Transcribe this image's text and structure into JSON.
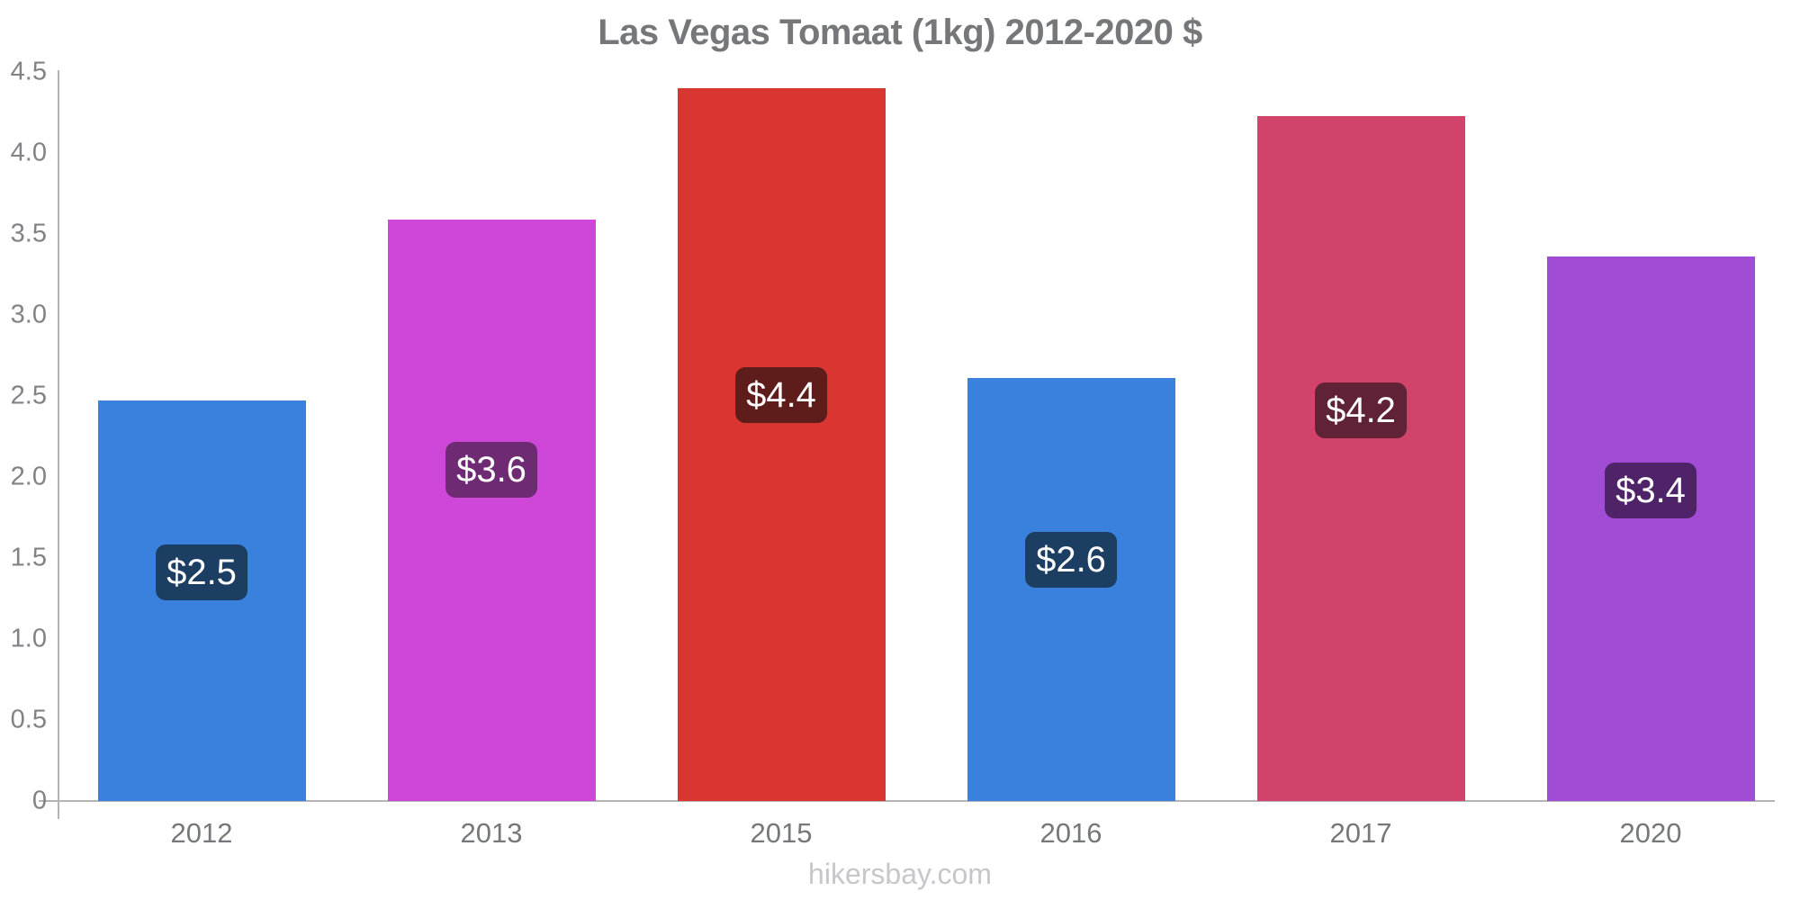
{
  "title": "Las Vegas Tomaat (1kg) 2012-2020 $",
  "footer": "hikersbay.com",
  "colors": {
    "axis_line": "#b3b4b6",
    "title_text": "#76777a",
    "tick_text": "#818287",
    "badge_text": "#ffffff",
    "footer_text": "#c6c6cb",
    "background": "#ffffff"
  },
  "chart_data": {
    "type": "bar",
    "title": "Las Vegas Tomaat (1kg) 2012-2020 $",
    "xlabel": "",
    "ylabel": "",
    "ylim": [
      0,
      4.5
    ],
    "grid": false,
    "legend": "none",
    "ytick_labels": [
      "0",
      "0.5",
      "1.0",
      "1.5",
      "2.0",
      "2.5",
      "3.0",
      "3.5",
      "4.0",
      "4.5"
    ],
    "ytick_values": [
      0,
      0.5,
      1.0,
      1.5,
      2.0,
      2.5,
      3.0,
      3.5,
      4.0,
      4.5
    ],
    "categories": [
      "2012",
      "2013",
      "2015",
      "2016",
      "2017",
      "2020"
    ],
    "values": [
      2.47,
      3.59,
      4.4,
      2.61,
      4.23,
      3.36
    ],
    "value_labels": [
      "$2.5",
      "$3.6",
      "$4.4",
      "$2.6",
      "$4.2",
      "$3.4"
    ],
    "bar_colors": [
      "#3a81de",
      "#ce47d9",
      "#da3631",
      "#3a81de",
      "#d2436b",
      "#a04cd5"
    ],
    "badge_colors": [
      "#1d3e63",
      "#6e2b74",
      "#5e1c1b",
      "#1d3e63",
      "#5f2236",
      "#4e2367"
    ]
  }
}
